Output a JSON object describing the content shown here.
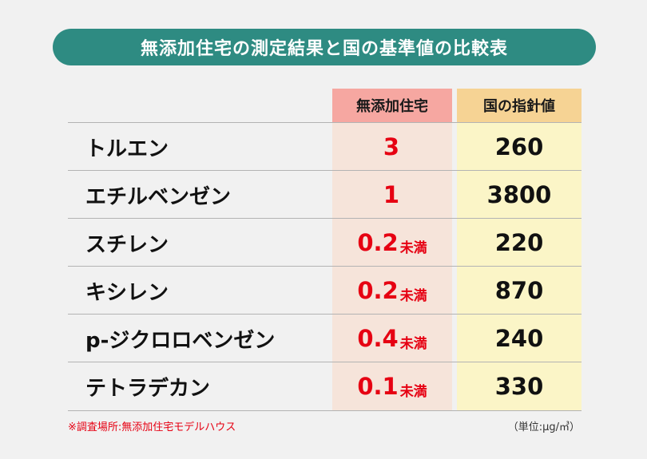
{
  "title": "無添加住宅の測定結果と国の基準値の比較表",
  "columns": {
    "home": "無添加住宅",
    "national": "国の指針値"
  },
  "rows": [
    {
      "name": "トルエン",
      "home": "3",
      "home_suffix": "",
      "national": "260"
    },
    {
      "name": "エチルベンゼン",
      "home": "1",
      "home_suffix": "",
      "national": "3800"
    },
    {
      "name": "スチレン",
      "home": "0.2",
      "home_suffix": "未満",
      "national": "220"
    },
    {
      "name": "キシレン",
      "home": "0.2",
      "home_suffix": "未満",
      "national": "870"
    },
    {
      "name": "p-ジクロロベンゼン",
      "home": "0.4",
      "home_suffix": "未満",
      "national": "240"
    },
    {
      "name": "テトラデカン",
      "home": "0.1",
      "home_suffix": "未満",
      "national": "330"
    }
  ],
  "footnote": "※調査場所:無添加住宅モデルハウス",
  "unit": "（単位:μg/㎥）",
  "colors": {
    "title_bg": "#2e8b82",
    "home_header": "#f6a7a1",
    "national_header": "#f6d394",
    "home_value": "#e60012"
  }
}
